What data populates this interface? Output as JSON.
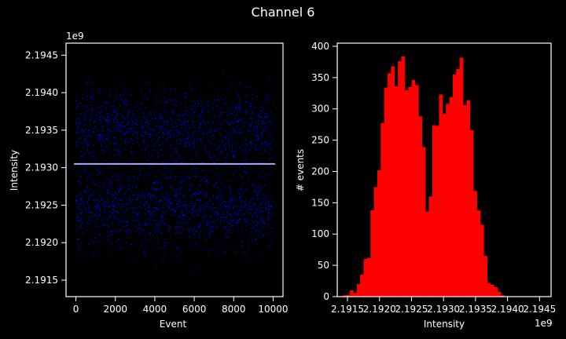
{
  "figure": {
    "title": "Channel 6",
    "background": "#000000",
    "foreground": "#ffffff"
  },
  "chart_data": [
    {
      "type": "scatter",
      "xlabel": "Event",
      "ylabel": "Intensity",
      "offset_label": "1e9",
      "xlim": [
        -500,
        10500
      ],
      "ylim": [
        2.19128,
        2.19466
      ],
      "x_ticks": [
        0,
        2000,
        4000,
        6000,
        8000,
        10000
      ],
      "x_tick_labels": [
        "0",
        "2000",
        "4000",
        "6000",
        "8000",
        "10000"
      ],
      "y_ticks": [
        2.1915,
        2.192,
        2.1925,
        2.193,
        2.1935,
        2.194,
        2.1945
      ],
      "y_tick_labels": [
        "2.1915",
        "2.1920",
        "2.1925",
        "2.1930",
        "2.1935",
        "2.1940",
        "2.1945"
      ],
      "n_points": 10000,
      "point_color": "#0000ff",
      "mean_line": {
        "value": 2.19305,
        "color": "#aaaaff"
      },
      "spine_color": "#ffffff"
    },
    {
      "type": "bar",
      "subtype": "histogram",
      "xlabel": "Intensity",
      "ylabel": "# events",
      "offset_label": "1e9",
      "bar_color": "#ff0000",
      "xlim": [
        2.19134,
        2.19468
      ],
      "ylim": [
        0,
        405
      ],
      "x_ticks": [
        2.1915,
        2.192,
        2.1925,
        2.193,
        2.1935,
        2.194,
        2.1945
      ],
      "x_tick_labels": [
        "2.1915",
        "2.1920",
        "2.1925",
        "2.1930",
        "2.1935",
        "2.1940",
        "2.1945"
      ],
      "y_ticks": [
        0,
        50,
        100,
        150,
        200,
        250,
        300,
        350,
        400
      ],
      "y_tick_labels": [
        "0",
        "50",
        "100",
        "150",
        "200",
        "250",
        "300",
        "350",
        "400"
      ],
      "bin_start": 2.19143,
      "bin_width": 5.36e-05,
      "counts": [
        2,
        3,
        10,
        6,
        20,
        35,
        60,
        62,
        138,
        175,
        202,
        277,
        334,
        357,
        368,
        336,
        376,
        384,
        330,
        335,
        346,
        338,
        288,
        239,
        136,
        160,
        274,
        273,
        323,
        292,
        308,
        319,
        355,
        364,
        382,
        306,
        314,
        266,
        169,
        138,
        115,
        65,
        22,
        19,
        15,
        8,
        2
      ]
    }
  ]
}
